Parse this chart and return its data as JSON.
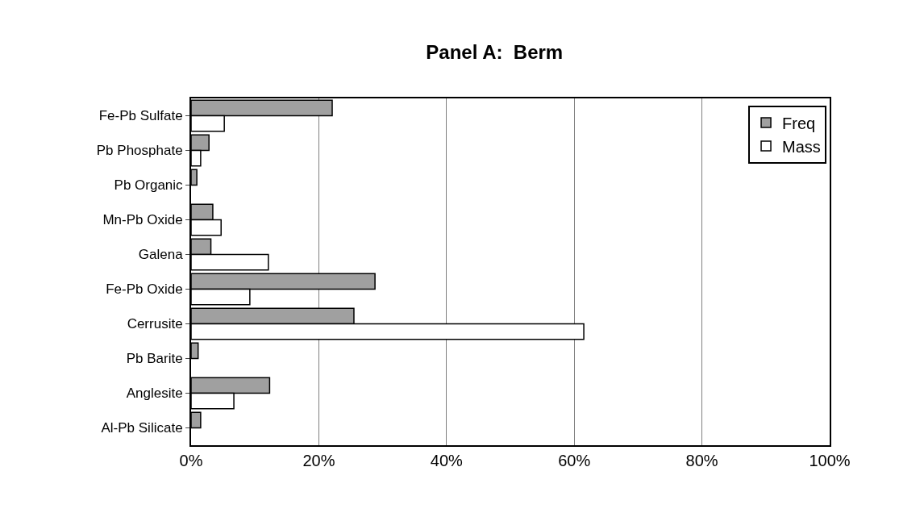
{
  "chart_data": {
    "type": "bar",
    "title": "Panel A:  Berm",
    "orientation": "horizontal",
    "categories": [
      "Fe-Pb Sulfate",
      "Pb Phosphate",
      "Pb Organic",
      "Mn-Pb Oxide",
      "Galena",
      "Fe-Pb Oxide",
      "Cerrusite",
      "Pb Barite",
      "Anglesite",
      "Al-Pb Silicate"
    ],
    "series": [
      {
        "name": "Freq",
        "color": "#a0a0a0",
        "values": [
          22.1,
          2.8,
          0.9,
          3.4,
          3.1,
          28.8,
          25.5,
          1.1,
          12.3,
          1.5
        ]
      },
      {
        "name": "Mass",
        "color": "#ffffff",
        "values": [
          5.2,
          1.5,
          null,
          4.7,
          12.1,
          9.2,
          61.5,
          null,
          6.7,
          null
        ]
      }
    ],
    "xlim": [
      0,
      100
    ],
    "xticks": [
      {
        "value": 0,
        "label": "0%"
      },
      {
        "value": 20,
        "label": "20%"
      },
      {
        "value": 40,
        "label": "40%"
      },
      {
        "value": 60,
        "label": "60%"
      },
      {
        "value": 80,
        "label": "80%"
      },
      {
        "value": 100,
        "label": "100%"
      }
    ],
    "grid": "x",
    "legend": "top right"
  }
}
